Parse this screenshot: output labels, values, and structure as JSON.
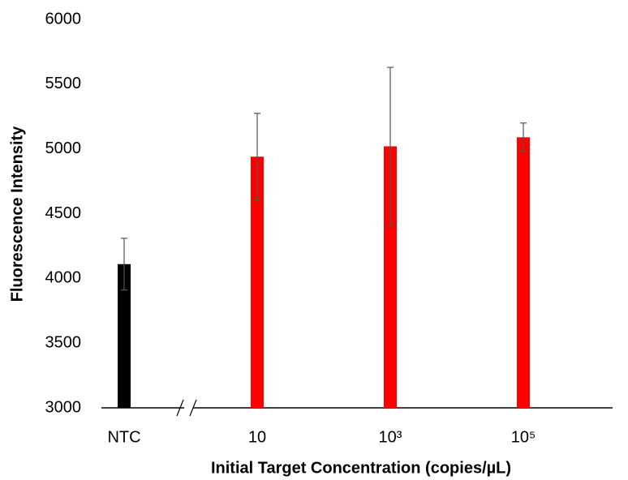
{
  "chart_data": {
    "type": "bar",
    "y_label": "Fluorescence Intensity",
    "x_label": "Initial Target Concentration (copies/µL)",
    "categories": [
      "NTC",
      "10",
      "10³",
      "10⁵"
    ],
    "values": [
      4110,
      4940,
      5020,
      5090
    ],
    "errors": [
      200,
      335,
      610,
      110
    ],
    "colors": [
      "#000000",
      "#ff0000",
      "#ff0000",
      "#ff0000"
    ],
    "ylim": [
      3000,
      6000
    ],
    "yticks": [
      3000,
      3500,
      4000,
      4500,
      5000,
      5500,
      6000
    ],
    "grid": false
  }
}
